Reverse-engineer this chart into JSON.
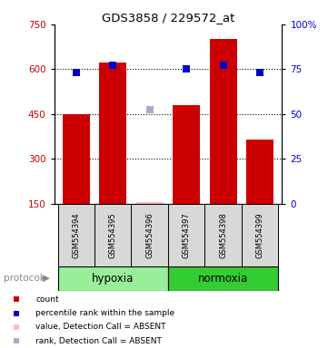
{
  "title": "GDS3858 / 229572_at",
  "samples": [
    "GSM554394",
    "GSM554395",
    "GSM554396",
    "GSM554397",
    "GSM554398",
    "GSM554399"
  ],
  "bar_values": [
    450,
    622,
    155,
    480,
    700,
    365
  ],
  "bar_color": "#cc0000",
  "percentile_values": [
    590,
    612,
    null,
    602,
    612,
    590
  ],
  "percentile_color": "#0000cc",
  "absent_rank_value": [
    null,
    null,
    465,
    null,
    null,
    null
  ],
  "absent_bar_value": [
    null,
    null,
    155,
    null,
    null,
    null
  ],
  "absent_rank_color": "#aaaacc",
  "absent_bar_color": "#ffbbbb",
  "ylim_left": [
    150,
    750
  ],
  "ylim_right": [
    0,
    100
  ],
  "yticks_left": [
    150,
    300,
    450,
    600,
    750
  ],
  "yticks_right": [
    0,
    25,
    50,
    75,
    100
  ],
  "grid_values": [
    300,
    450,
    600
  ],
  "protocol_groups": [
    {
      "label": "hypoxia",
      "color": "#99ee99",
      "start": 0,
      "end": 2
    },
    {
      "label": "normoxia",
      "color": "#33cc33",
      "start": 3,
      "end": 5
    }
  ],
  "protocol_label": "protocol",
  "sample_bg_color": "#d8d8d8",
  "plot_bg": "#ffffff",
  "legend_items": [
    {
      "color": "#cc0000",
      "label": "count"
    },
    {
      "color": "#0000cc",
      "label": "percentile rank within the sample"
    },
    {
      "color": "#ffbbbb",
      "label": "value, Detection Call = ABSENT"
    },
    {
      "color": "#aaaacc",
      "label": "rank, Detection Call = ABSENT"
    }
  ]
}
